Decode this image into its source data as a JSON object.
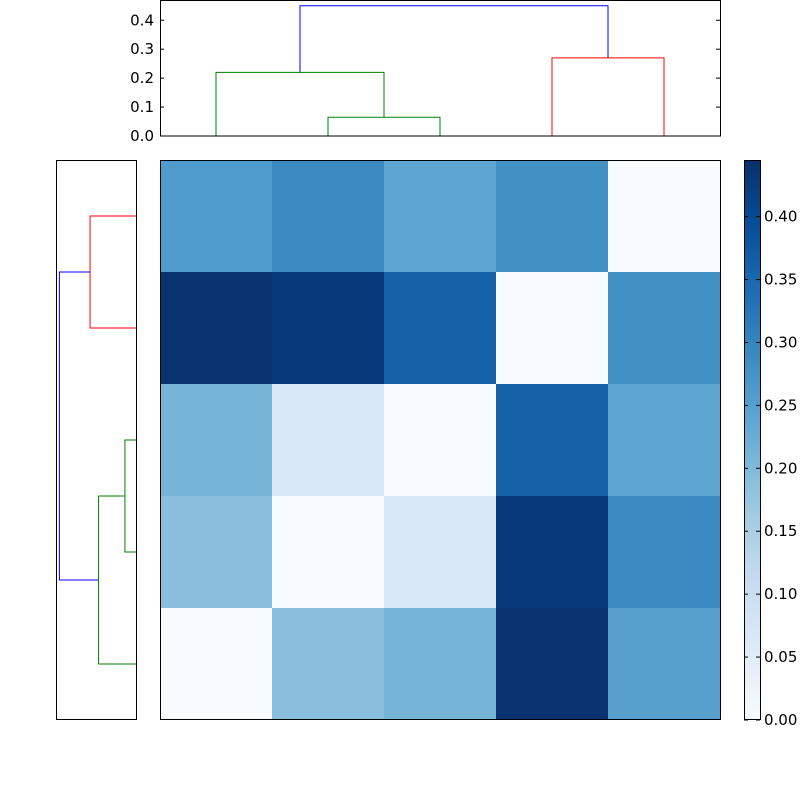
{
  "chart_data": [
    {
      "type": "heatmap",
      "colormap": "Blues",
      "vmin": 0.0,
      "vmax": 0.445,
      "values": [
        [
          0.26,
          0.29,
          0.24,
          0.28,
          0.0
        ],
        [
          0.44,
          0.43,
          0.36,
          0.0,
          0.28
        ],
        [
          0.21,
          0.07,
          0.0,
          0.36,
          0.24
        ],
        [
          0.19,
          0.0,
          0.07,
          0.43,
          0.29
        ],
        [
          0.0,
          0.19,
          0.21,
          0.44,
          0.25
        ]
      ],
      "colorbar": {
        "ticks": [
          0.0,
          0.05,
          0.1,
          0.15,
          0.2,
          0.25,
          0.3,
          0.35,
          0.4
        ],
        "tick_labels": [
          "0.00",
          "0.05",
          "0.10",
          "0.15",
          "0.20",
          "0.25",
          "0.30",
          "0.35",
          "0.40"
        ]
      }
    },
    {
      "type": "dendrogram",
      "orientation": "top",
      "ylim": [
        0,
        0.47
      ],
      "yticks": [
        0.0,
        0.1,
        0.2,
        0.3,
        0.4
      ],
      "ytick_labels": [
        "0.0",
        "0.1",
        "0.2",
        "0.3",
        "0.4"
      ],
      "links": [
        {
          "left": 1,
          "right": 2,
          "height": 0.065,
          "color": "#008000"
        },
        {
          "left": 0,
          "right": 1.5,
          "height": 0.22,
          "color": "#008000"
        },
        {
          "left": 3,
          "right": 4,
          "height": 0.27,
          "color": "#ff0000"
        },
        {
          "left": 0.75,
          "right": 3.5,
          "height": 0.45,
          "color": "#0000ff"
        }
      ]
    },
    {
      "type": "dendrogram",
      "orientation": "left",
      "xlim": [
        0,
        0.47
      ],
      "links": [
        {
          "left": 0,
          "right": 1,
          "height": 0.27,
          "color": "#ff0000"
        },
        {
          "left": 2,
          "right": 3,
          "height": 0.065,
          "color": "#008000"
        },
        {
          "left": 2.5,
          "right": 4,
          "height": 0.22,
          "color": "#008000"
        },
        {
          "left": 0.5,
          "right": 3.25,
          "height": 0.45,
          "color": "#0000ff"
        }
      ]
    }
  ]
}
